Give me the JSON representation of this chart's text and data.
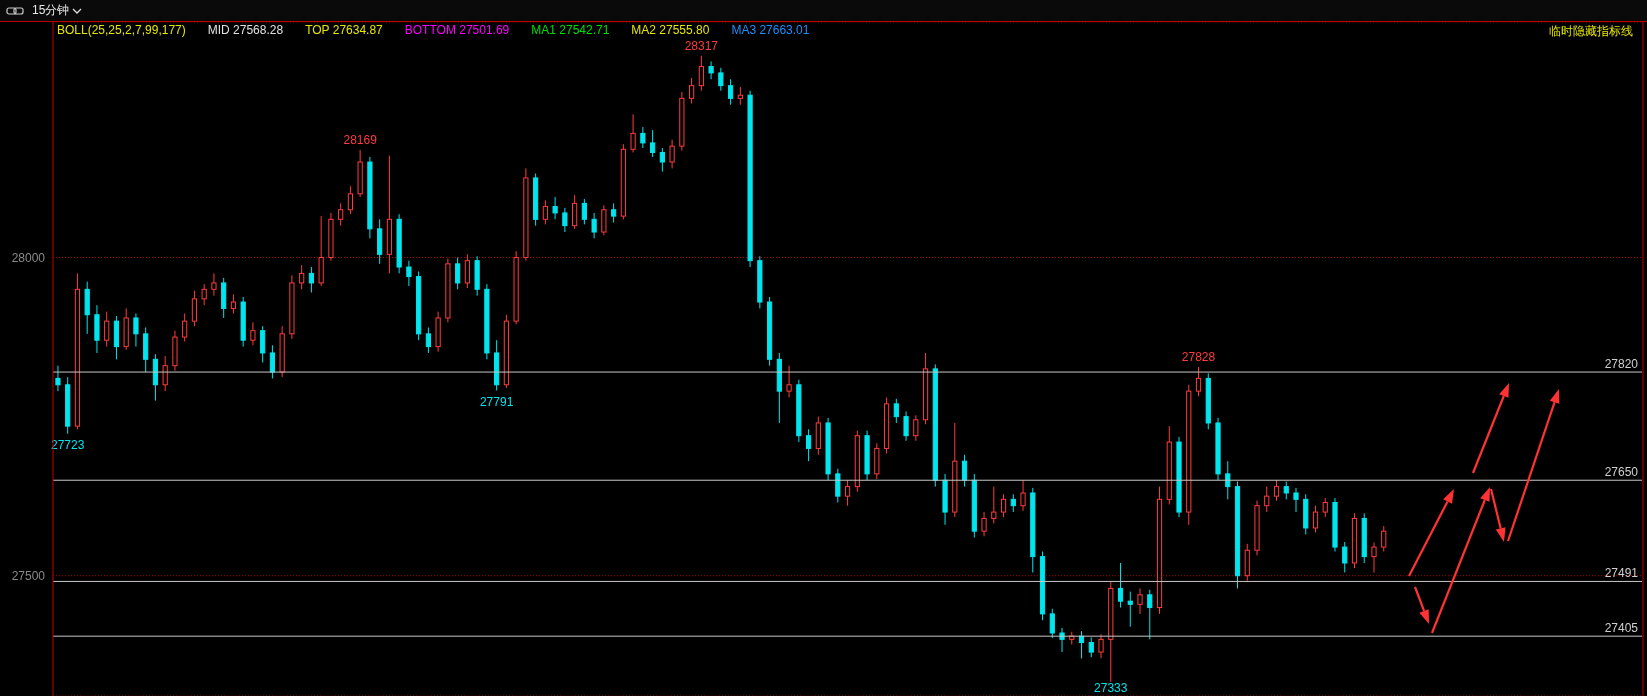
{
  "chart_data": {
    "type": "candlestick",
    "title": "15分钟",
    "categories": [
      null,
      null,
      null,
      null,
      null,
      null,
      null,
      null,
      null,
      null,
      null,
      null,
      null,
      null,
      null,
      null,
      null,
      null,
      null,
      null,
      null,
      null,
      null,
      null,
      null,
      null,
      null,
      null,
      null,
      null,
      null,
      null,
      null,
      null,
      null,
      null,
      null,
      null,
      null,
      null,
      null,
      null,
      null,
      null,
      null,
      null,
      null,
      null,
      null,
      null,
      null,
      null,
      null,
      null,
      null,
      null,
      null,
      null,
      null,
      null,
      null,
      null,
      null,
      null,
      null,
      null,
      null,
      null,
      null,
      null,
      null,
      null,
      null,
      null,
      null,
      null,
      null,
      null,
      null,
      null,
      null,
      null,
      null,
      null,
      null,
      null,
      null,
      null,
      null,
      null,
      null,
      null,
      null,
      null,
      null,
      null,
      null,
      null,
      null,
      null,
      null,
      null,
      null,
      null,
      null,
      null,
      null,
      null,
      null,
      null,
      null,
      null,
      null,
      null,
      null,
      null,
      null,
      null,
      null,
      null,
      null,
      null,
      null,
      null,
      null,
      null,
      null,
      null,
      null,
      null,
      null,
      null,
      null,
      null,
      null,
      null,
      null,
      null,
      null,
      null,
      null,
      null,
      null,
      null,
      null,
      null,
      null,
      null,
      null,
      null,
      null,
      null,
      null,
      null,
      null,
      null,
      null,
      null,
      null,
      null,
      null,
      null,
      null
    ],
    "ohlc": [
      [
        27810,
        27830,
        27790,
        27800
      ],
      [
        27800,
        27812,
        27723,
        27735
      ],
      [
        27735,
        27975,
        27730,
        27950
      ],
      [
        27950,
        27962,
        27880,
        27910
      ],
      [
        27910,
        27925,
        27850,
        27870
      ],
      [
        27870,
        27915,
        27860,
        27900
      ],
      [
        27900,
        27908,
        27840,
        27860
      ],
      [
        27860,
        27920,
        27855,
        27905
      ],
      [
        27905,
        27912,
        27860,
        27880
      ],
      [
        27880,
        27890,
        27820,
        27840
      ],
      [
        27840,
        27848,
        27775,
        27800
      ],
      [
        27800,
        27845,
        27790,
        27830
      ],
      [
        27830,
        27885,
        27822,
        27875
      ],
      [
        27875,
        27912,
        27868,
        27900
      ],
      [
        27900,
        27948,
        27892,
        27935
      ],
      [
        27935,
        27958,
        27925,
        27950
      ],
      [
        27950,
        27975,
        27940,
        27960
      ],
      [
        27960,
        27968,
        27905,
        27920
      ],
      [
        27920,
        27942,
        27912,
        27930
      ],
      [
        27930,
        27938,
        27860,
        27870
      ],
      [
        27870,
        27898,
        27862,
        27885
      ],
      [
        27885,
        27892,
        27835,
        27850
      ],
      [
        27850,
        27862,
        27810,
        27820
      ],
      [
        27820,
        27892,
        27812,
        27880
      ],
      [
        27880,
        27972,
        27872,
        27960
      ],
      [
        27960,
        27988,
        27950,
        27975
      ],
      [
        27975,
        27985,
        27945,
        27960
      ],
      [
        27960,
        28065,
        27955,
        28000
      ],
      [
        28000,
        28070,
        27995,
        28060
      ],
      [
        28060,
        28085,
        28050,
        28075
      ],
      [
        28075,
        28112,
        28068,
        28100
      ],
      [
        28100,
        28169,
        28095,
        28150
      ],
      [
        28150,
        28158,
        28030,
        28045
      ],
      [
        28045,
        28060,
        27990,
        28005
      ],
      [
        28005,
        28160,
        27975,
        28060
      ],
      [
        28060,
        28068,
        27975,
        27985
      ],
      [
        27985,
        27995,
        27955,
        27970
      ],
      [
        27970,
        27978,
        27870,
        27880
      ],
      [
        27880,
        27890,
        27850,
        27860
      ],
      [
        27860,
        27915,
        27852,
        27905
      ],
      [
        27905,
        27998,
        27898,
        27990
      ],
      [
        27990,
        28000,
        27950,
        27960
      ],
      [
        27960,
        28005,
        27952,
        27995
      ],
      [
        27995,
        28002,
        27940,
        27950
      ],
      [
        27950,
        27958,
        27840,
        27850
      ],
      [
        27850,
        27870,
        27791,
        27800
      ],
      [
        27800,
        27910,
        27795,
        27900
      ],
      [
        27900,
        28010,
        27895,
        28000
      ],
      [
        28000,
        28140,
        27995,
        28125
      ],
      [
        28125,
        28132,
        28050,
        28060
      ],
      [
        28060,
        28090,
        28052,
        28080
      ],
      [
        28080,
        28095,
        28060,
        28070
      ],
      [
        28070,
        28078,
        28040,
        28050
      ],
      [
        28050,
        28098,
        28045,
        28085
      ],
      [
        28085,
        28092,
        28052,
        28060
      ],
      [
        28060,
        28070,
        28030,
        28040
      ],
      [
        28040,
        28082,
        28035,
        28075
      ],
      [
        28075,
        28085,
        28055,
        28065
      ],
      [
        28065,
        28178,
        28060,
        28170
      ],
      [
        28170,
        28225,
        28165,
        28195
      ],
      [
        28195,
        28205,
        28172,
        28180
      ],
      [
        28180,
        28200,
        28158,
        28165
      ],
      [
        28165,
        28172,
        28135,
        28150
      ],
      [
        28150,
        28185,
        28140,
        28175
      ],
      [
        28175,
        28260,
        28168,
        28250
      ],
      [
        28250,
        28282,
        28242,
        28270
      ],
      [
        28270,
        28317,
        28262,
        28300
      ],
      [
        28300,
        28308,
        28280,
        28290
      ],
      [
        28290,
        28298,
        28262,
        28270
      ],
      [
        28270,
        28280,
        28240,
        28250
      ],
      [
        28250,
        28268,
        28240,
        28255
      ],
      [
        28255,
        28262,
        27985,
        27995
      ],
      [
        27995,
        28002,
        27920,
        27930
      ],
      [
        27930,
        27938,
        27830,
        27840
      ],
      [
        27840,
        27850,
        27740,
        27790
      ],
      [
        27790,
        27830,
        27780,
        27800
      ],
      [
        27800,
        27808,
        27710,
        27720
      ],
      [
        27720,
        27730,
        27680,
        27700
      ],
      [
        27700,
        27750,
        27690,
        27740
      ],
      [
        27740,
        27748,
        27650,
        27660
      ],
      [
        27660,
        27668,
        27615,
        27625
      ],
      [
        27625,
        27650,
        27610,
        27640
      ],
      [
        27640,
        27728,
        27632,
        27720
      ],
      [
        27720,
        27728,
        27650,
        27660
      ],
      [
        27660,
        27708,
        27652,
        27700
      ],
      [
        27700,
        27780,
        27692,
        27770
      ],
      [
        27770,
        27778,
        27740,
        27750
      ],
      [
        27750,
        27758,
        27712,
        27720
      ],
      [
        27720,
        27752,
        27712,
        27745
      ],
      [
        27745,
        27850,
        27738,
        27825
      ],
      [
        27825,
        27832,
        27640,
        27650
      ],
      [
        27650,
        27660,
        27580,
        27600
      ],
      [
        27600,
        27740,
        27592,
        27680
      ],
      [
        27680,
        27690,
        27640,
        27650
      ],
      [
        27650,
        27660,
        27560,
        27570
      ],
      [
        27570,
        27600,
        27562,
        27590
      ],
      [
        27590,
        27640,
        27582,
        27600
      ],
      [
        27600,
        27628,
        27592,
        27620
      ],
      [
        27620,
        27628,
        27600,
        27610
      ],
      [
        27610,
        27650,
        27602,
        27630
      ],
      [
        27630,
        27638,
        27505,
        27530
      ],
      [
        27530,
        27538,
        27430,
        27440
      ],
      [
        27440,
        27448,
        27402,
        27410
      ],
      [
        27410,
        27418,
        27380,
        27400
      ],
      [
        27400,
        27412,
        27392,
        27405
      ],
      [
        27405,
        27413,
        27370,
        27395
      ],
      [
        27395,
        27403,
        27372,
        27380
      ],
      [
        27380,
        27408,
        27370,
        27400
      ],
      [
        27400,
        27490,
        27333,
        27480
      ],
      [
        27480,
        27520,
        27450,
        27460
      ],
      [
        27460,
        27475,
        27420,
        27455
      ],
      [
        27455,
        27480,
        27440,
        27470
      ],
      [
        27470,
        27478,
        27400,
        27450
      ],
      [
        27450,
        27640,
        27440,
        27620
      ],
      [
        27620,
        27735,
        27612,
        27710
      ],
      [
        27710,
        27718,
        27592,
        27600
      ],
      [
        27600,
        27800,
        27580,
        27790
      ],
      [
        27790,
        27828,
        27782,
        27810
      ],
      [
        27810,
        27818,
        27730,
        27740
      ],
      [
        27740,
        27748,
        27650,
        27660
      ],
      [
        27660,
        27680,
        27620,
        27640
      ],
      [
        27640,
        27648,
        27480,
        27500
      ],
      [
        27500,
        27550,
        27492,
        27540
      ],
      [
        27540,
        27618,
        27532,
        27610
      ],
      [
        27610,
        27640,
        27600,
        27625
      ],
      [
        27625,
        27650,
        27618,
        27640
      ],
      [
        27640,
        27648,
        27620,
        27630
      ],
      [
        27630,
        27638,
        27600,
        27620
      ],
      [
        27620,
        27628,
        27565,
        27575
      ],
      [
        27575,
        27610,
        27568,
        27600
      ],
      [
        27600,
        27622,
        27592,
        27615
      ],
      [
        27615,
        27622,
        27538,
        27545
      ],
      [
        27545,
        27553,
        27505,
        27520
      ],
      [
        27520,
        27598,
        27512,
        27590
      ],
      [
        27590,
        27598,
        27520,
        27530
      ],
      [
        27530,
        27552,
        27505,
        27545
      ],
      [
        27545,
        27578,
        27538,
        27570
      ],
      null,
      null,
      null,
      null,
      null,
      null,
      null,
      null,
      null,
      null,
      null,
      null,
      null,
      null,
      null,
      null,
      null,
      null,
      null,
      null,
      null,
      null,
      null,
      null,
      null,
      null
    ],
    "ylim": [
      27311,
      28370
    ],
    "yticks": [
      27500,
      28000
    ],
    "grid": "y",
    "ref_lines": [
      {
        "axis": "y",
        "value": 27820,
        "label": "27820",
        "color": "#c8c8c8"
      },
      {
        "axis": "y",
        "value": 27650,
        "label": "27650",
        "color": "#c8c8c8"
      },
      {
        "axis": "y",
        "value": 27491,
        "label": "27491",
        "color": "#c8c8c8"
      },
      {
        "axis": "y",
        "value": 27405,
        "label": "27405",
        "color": "#c8c8c8"
      }
    ],
    "annotations": [
      "BOLL(25,25,2,7,99,177)",
      "MID 27568.28",
      "TOP 27634.87",
      "BOTTOM 27501.69",
      "MA1 27542.71",
      "MA2 27555.80",
      "MA3 27663.01",
      "临时隐藏指标线",
      {
        "text": "28317",
        "y": 28317
      },
      {
        "text": "28169",
        "y": 28169
      },
      {
        "text": "27791",
        "y": 27791
      },
      {
        "text": "27828",
        "y": 27828
      },
      {
        "text": "27333",
        "y": 27333
      },
      {
        "text": "27723",
        "y": 27723
      }
    ]
  }
}
